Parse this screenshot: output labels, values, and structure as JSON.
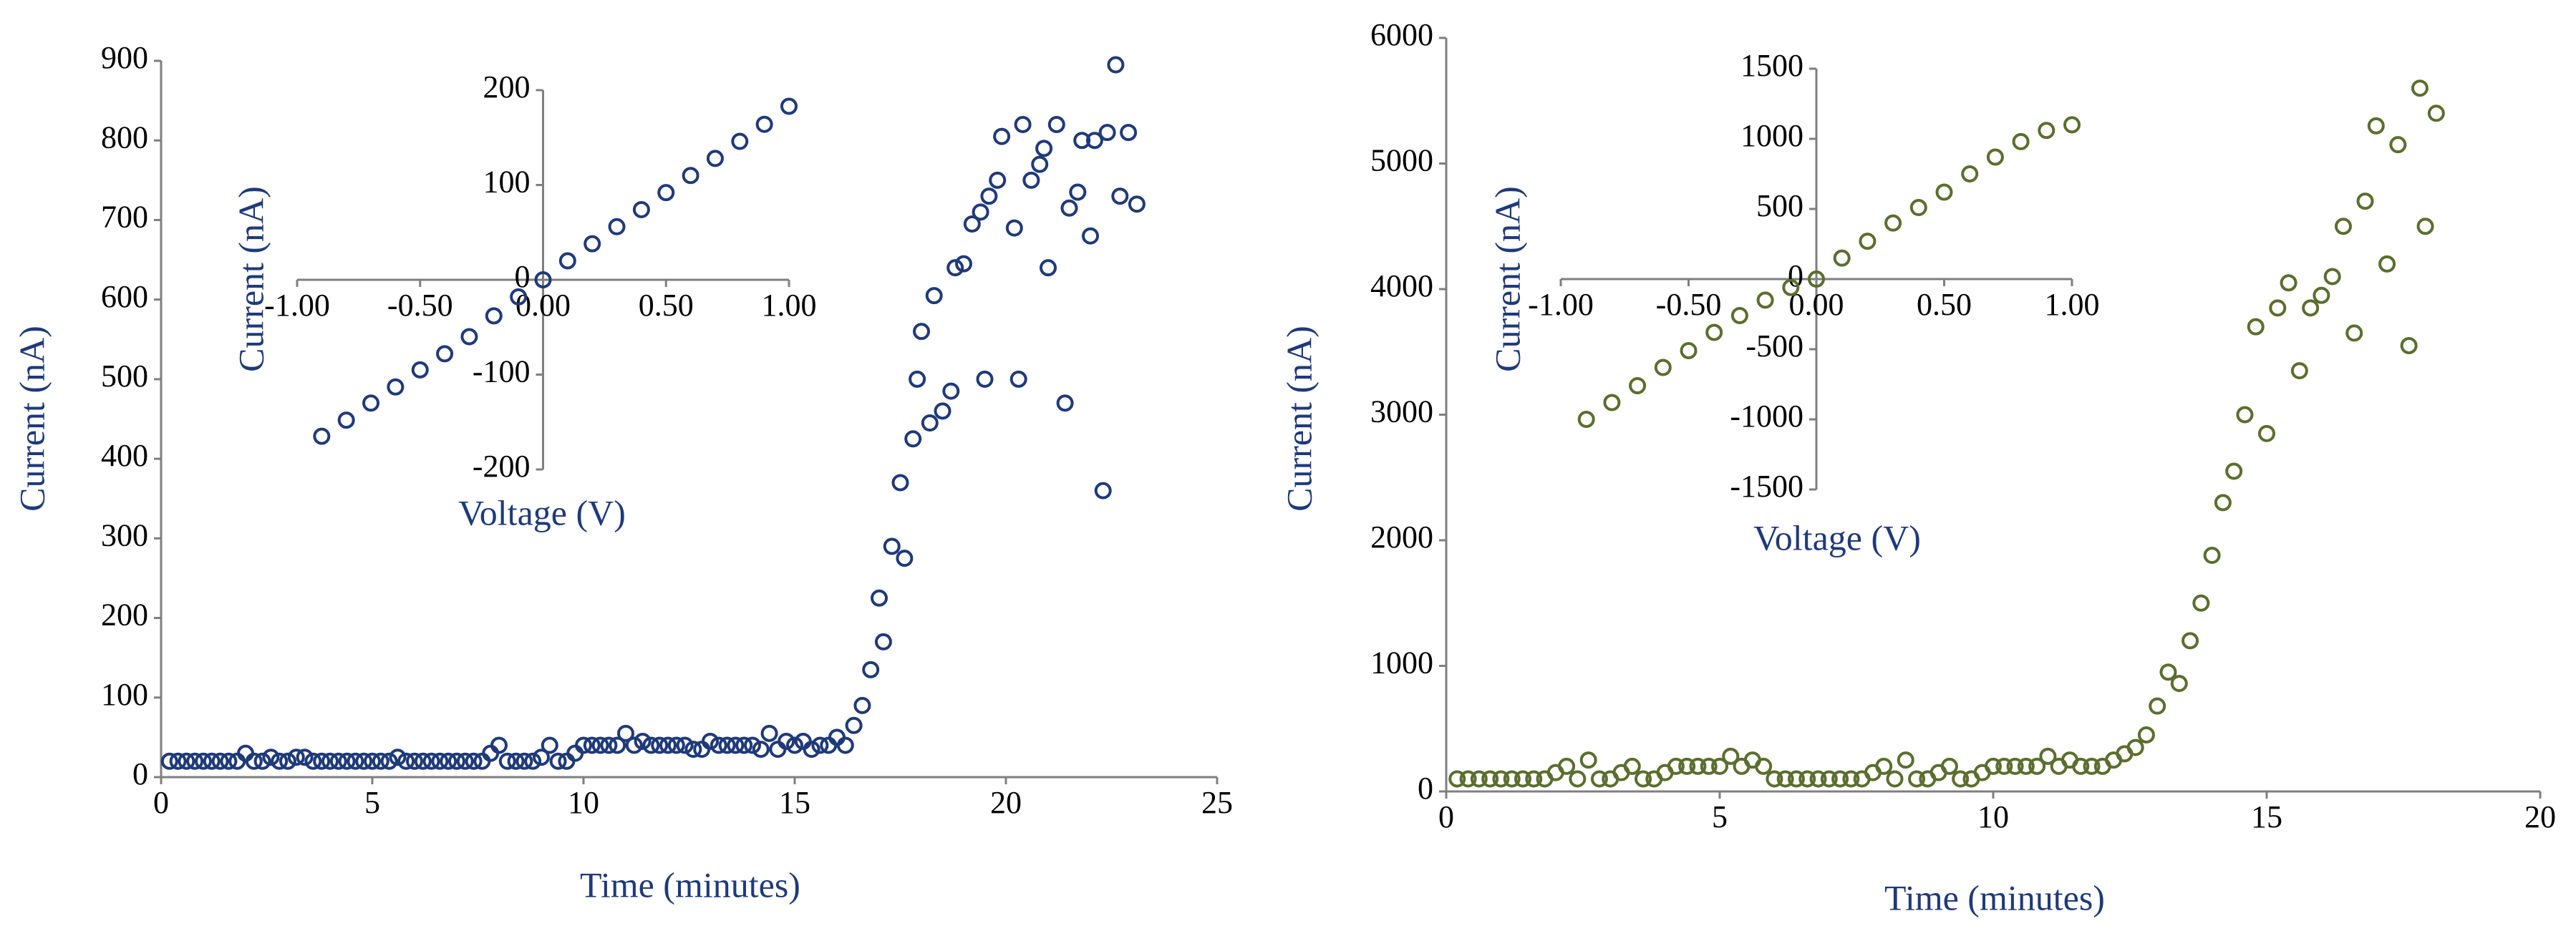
{
  "chart_data": [
    {
      "type": "scatter",
      "color": "#1f3a7a",
      "marker": "open-circle",
      "x_label": "Time (minutes)",
      "y_label": "Current (nA)",
      "x": [
        0.2,
        0.4,
        0.6,
        0.8,
        1.0,
        1.2,
        1.4,
        1.6,
        1.8,
        2.0,
        2.2,
        2.4,
        2.6,
        2.8,
        3.0,
        3.2,
        3.4,
        3.6,
        3.8,
        4.0,
        4.2,
        4.4,
        4.6,
        4.8,
        5.0,
        5.2,
        5.4,
        5.6,
        5.8,
        6.0,
        6.2,
        6.4,
        6.6,
        6.8,
        7.0,
        7.2,
        7.4,
        7.6,
        7.8,
        8.0,
        8.2,
        8.4,
        8.6,
        8.8,
        9.0,
        9.2,
        9.4,
        9.6,
        9.8,
        10.0,
        10.2,
        10.4,
        10.6,
        10.8,
        11.0,
        11.2,
        11.4,
        11.6,
        11.8,
        12.0,
        12.2,
        12.4,
        12.6,
        12.8,
        13.0,
        13.2,
        13.4,
        13.6,
        13.8,
        14.0,
        14.2,
        14.4,
        14.6,
        14.8,
        15.0,
        15.2,
        15.4,
        15.6,
        15.8,
        16.0,
        16.2,
        16.4,
        16.6,
        16.8,
        17.0,
        17.1,
        17.3,
        17.5,
        17.6,
        17.8,
        17.9,
        18.0,
        18.2,
        18.3,
        18.5,
        18.7,
        18.8,
        19.0,
        19.2,
        19.4,
        19.5,
        19.6,
        19.8,
        19.9,
        20.2,
        20.3,
        20.4,
        20.6,
        20.8,
        20.9,
        21.0,
        21.2,
        21.4,
        21.5,
        21.7,
        21.8,
        22.0,
        22.1,
        22.3,
        22.4,
        22.6,
        22.7,
        22.9,
        23.1
      ],
      "values": [
        20,
        20,
        20,
        20,
        20,
        20,
        20,
        20,
        20,
        30,
        20,
        20,
        25,
        20,
        20,
        25,
        25,
        20,
        20,
        20,
        20,
        20,
        20,
        20,
        20,
        20,
        20,
        25,
        20,
        20,
        20,
        20,
        20,
        20,
        20,
        20,
        20,
        20,
        30,
        40,
        20,
        20,
        20,
        20,
        25,
        40,
        20,
        20,
        30,
        40,
        40,
        40,
        40,
        40,
        55,
        40,
        45,
        40,
        40,
        40,
        40,
        40,
        35,
        35,
        45,
        40,
        40,
        40,
        40,
        40,
        35,
        55,
        35,
        45,
        40,
        45,
        35,
        40,
        40,
        50,
        40,
        65,
        90,
        135,
        225,
        170,
        290,
        370,
        275,
        425,
        500,
        560,
        445,
        605,
        460,
        485,
        640,
        645,
        695,
        710,
        500,
        730,
        750,
        805,
        690,
        500,
        820,
        750,
        770,
        790,
        640,
        820,
        470,
        715,
        735,
        800,
        680,
        800,
        360,
        810,
        895,
        730,
        810,
        720
      ],
      "xlim": [
        0,
        25
      ],
      "xticks": [
        0,
        5,
        10,
        15,
        20,
        25
      ],
      "ylim": [
        0,
        900
      ],
      "yticks": [
        0,
        100,
        200,
        300,
        400,
        500,
        600,
        700,
        800,
        900
      ]
    },
    {
      "type": "scatter",
      "color": "#1f3a7a",
      "marker": "open-circle",
      "axes_cross_at_zero": true,
      "x_label": "Voltage (V)",
      "y_label": "Current (nA)",
      "x": [
        -0.9,
        -0.8,
        -0.7,
        -0.6,
        -0.5,
        -0.4,
        -0.3,
        -0.2,
        -0.1,
        0.0,
        0.1,
        0.2,
        0.3,
        0.4,
        0.5,
        0.6,
        0.7,
        0.8,
        0.9,
        1.0
      ],
      "values": [
        -165,
        -148,
        -130,
        -113,
        -95,
        -78,
        -60,
        -38,
        -18,
        0,
        20,
        38,
        56,
        74,
        92,
        110,
        128,
        146,
        164,
        183
      ],
      "xlim": [
        -1,
        1
      ],
      "xticks": [
        {
          "value": -1,
          "label": "-1.00"
        },
        {
          "value": -0.5,
          "label": "-0.50"
        },
        {
          "value": 0,
          "label": "0.00"
        },
        {
          "value": 0.5,
          "label": "0.50"
        },
        {
          "value": 1,
          "label": "1.00"
        }
      ],
      "ylim": [
        -200,
        200
      ],
      "yticks": [
        -200,
        -100,
        0,
        100,
        200
      ]
    },
    {
      "type": "scatter",
      "color": "#5b6e2e",
      "marker": "open-circle",
      "x_label": "Time (minutes)",
      "y_label": "Current (nA)",
      "x": [
        0.2,
        0.4,
        0.6,
        0.8,
        1.0,
        1.2,
        1.4,
        1.6,
        1.8,
        2.0,
        2.2,
        2.4,
        2.6,
        2.8,
        3.0,
        3.2,
        3.4,
        3.6,
        3.8,
        4.0,
        4.2,
        4.4,
        4.6,
        4.8,
        5.0,
        5.2,
        5.4,
        5.6,
        5.8,
        6.0,
        6.2,
        6.4,
        6.6,
        6.8,
        7.0,
        7.2,
        7.4,
        7.6,
        7.8,
        8.0,
        8.2,
        8.4,
        8.6,
        8.8,
        9.0,
        9.2,
        9.4,
        9.6,
        9.8,
        10.0,
        10.2,
        10.4,
        10.6,
        10.8,
        11.0,
        11.2,
        11.4,
        11.6,
        11.8,
        12.0,
        12.2,
        12.4,
        12.6,
        12.8,
        13.0,
        13.2,
        13.4,
        13.6,
        13.8,
        14.0,
        14.2,
        14.4,
        14.6,
        14.8,
        15.0,
        15.2,
        15.4,
        15.6,
        15.8,
        16.0,
        16.2,
        16.4,
        16.6,
        16.8,
        17.0,
        17.2,
        17.4,
        17.6,
        17.8,
        17.9,
        18.1
      ],
      "values": [
        100,
        100,
        100,
        100,
        100,
        100,
        100,
        100,
        100,
        150,
        200,
        100,
        250,
        100,
        100,
        150,
        200,
        100,
        100,
        150,
        200,
        200,
        200,
        200,
        200,
        280,
        200,
        250,
        200,
        100,
        100,
        100,
        100,
        100,
        100,
        100,
        100,
        100,
        150,
        200,
        100,
        250,
        100,
        100,
        150,
        200,
        100,
        100,
        150,
        200,
        200,
        200,
        200,
        200,
        280,
        200,
        250,
        200,
        200,
        200,
        250,
        300,
        350,
        450,
        680,
        950,
        860,
        1200,
        1500,
        1880,
        2300,
        2550,
        3000,
        3700,
        2850,
        3850,
        4050,
        3350,
        3850,
        3950,
        4100,
        4500,
        3650,
        4700,
        5300,
        4200,
        5150,
        3550,
        5600,
        4500,
        5400
      ],
      "xlim": [
        0,
        20
      ],
      "xticks": [
        0,
        5,
        10,
        15,
        20
      ],
      "ylim": [
        0,
        6000
      ],
      "yticks": [
        0,
        1000,
        2000,
        3000,
        4000,
        5000,
        6000
      ]
    },
    {
      "type": "scatter",
      "color": "#5b6e2e",
      "marker": "open-circle",
      "axes_cross_at_zero": true,
      "x_label": "Voltage (V)",
      "y_label": "Current (nA)",
      "x": [
        -0.9,
        -0.8,
        -0.7,
        -0.6,
        -0.5,
        -0.4,
        -0.3,
        -0.2,
        -0.1,
        0.0,
        0.1,
        0.2,
        0.3,
        0.4,
        0.5,
        0.6,
        0.7,
        0.8,
        0.9,
        1.0
      ],
      "values": [
        -1000,
        -880,
        -760,
        -630,
        -510,
        -380,
        -260,
        -150,
        -60,
        0,
        150,
        270,
        400,
        510,
        620,
        750,
        870,
        980,
        1060,
        1100
      ],
      "xlim": [
        -1,
        1
      ],
      "xticks": [
        {
          "value": -1,
          "label": "-1.00"
        },
        {
          "value": -0.5,
          "label": "-0.50"
        },
        {
          "value": 0,
          "label": "0.00"
        },
        {
          "value": 0.5,
          "label": "0.50"
        },
        {
          "value": 1,
          "label": "1.00"
        }
      ],
      "ylim": [
        -1500,
        1500
      ],
      "yticks": [
        -1500,
        -1000,
        -500,
        0,
        500,
        1000,
        1500
      ]
    }
  ]
}
